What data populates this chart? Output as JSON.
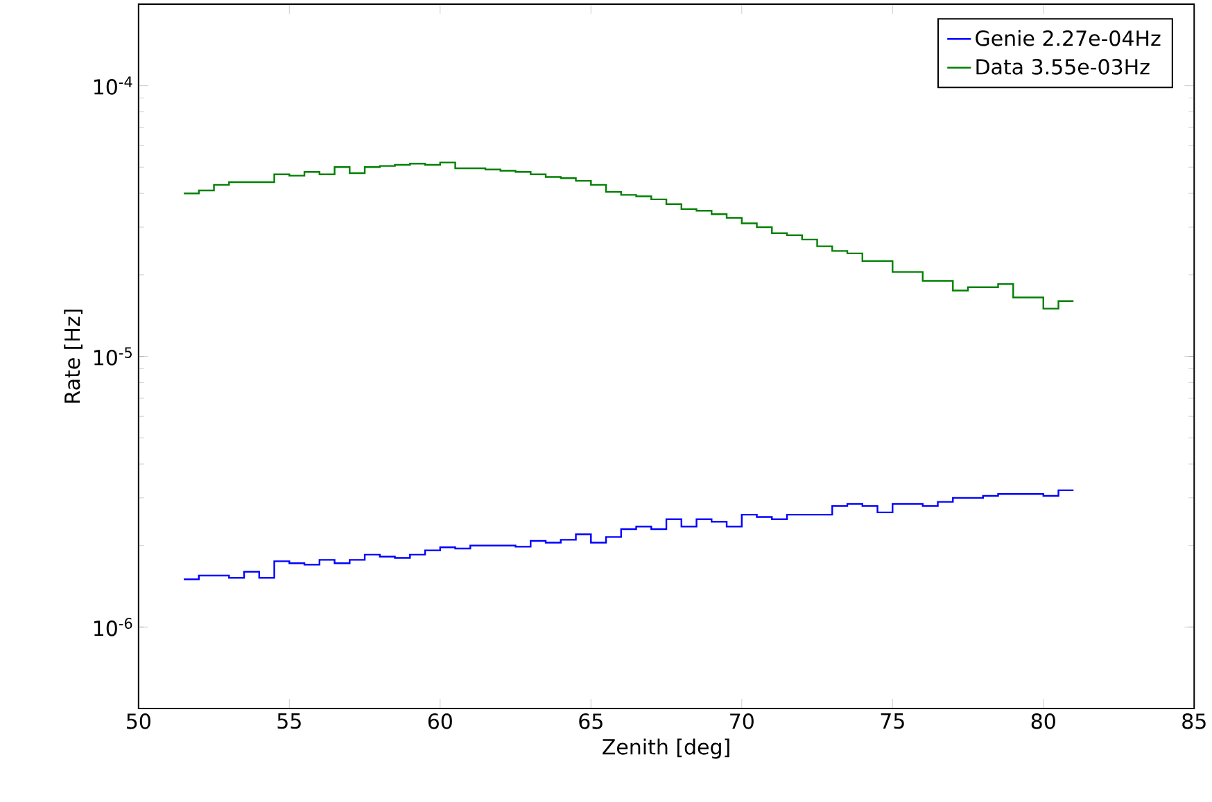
{
  "chart_data": {
    "type": "histogram",
    "xlabel": "Zenith [deg]",
    "ylabel": "Rate [Hz]",
    "log": "y",
    "legend": "top right",
    "xlim": [
      50,
      85
    ],
    "xticks": [
      50,
      55,
      60,
      65,
      70,
      75,
      80,
      85
    ],
    "ylim": [
      5e-07,
      0.0002
    ],
    "yticks": [
      {
        "value": 1e-06,
        "label": "10$^{-6}$"
      },
      {
        "value": 1e-05,
        "label": "10$^{-5}$"
      },
      {
        "value": 0.0001,
        "label": "10$^{-4}$"
      }
    ],
    "bins": [
      51.5,
      52.0,
      52.5,
      53.0,
      53.5,
      54.0,
      54.5,
      55.0,
      55.5,
      56.0,
      56.5,
      57.0,
      57.5,
      58.0,
      58.5,
      59.0,
      59.5,
      60.0,
      60.5,
      61.0,
      61.5,
      62.0,
      62.5,
      63.0,
      63.5,
      64.0,
      64.5,
      65.0,
      65.5,
      66.0,
      66.5,
      67.0,
      67.5,
      68.0,
      68.5,
      69.0,
      69.5,
      70.0,
      70.5,
      71.0,
      71.5,
      72.0,
      72.5,
      73.0,
      73.5,
      74.0,
      74.5,
      75.0,
      75.5,
      76.0,
      76.5,
      77.0,
      77.5,
      78.0,
      78.5,
      79.0,
      79.5,
      80.0,
      80.5,
      81.0
    ],
    "series": [
      {
        "name": "Genie 2.27e-04Hz",
        "color": "#0000ff",
        "values": [
          1.5e-06,
          1.55e-06,
          1.55e-06,
          1.52e-06,
          1.6e-06,
          1.52e-06,
          1.75e-06,
          1.72e-06,
          1.7e-06,
          1.77e-06,
          1.72e-06,
          1.77e-06,
          1.85e-06,
          1.82e-06,
          1.8e-06,
          1.85e-06,
          1.92e-06,
          1.97e-06,
          1.95e-06,
          2e-06,
          2e-06,
          2e-06,
          1.98e-06,
          2.08e-06,
          2.05e-06,
          2.1e-06,
          2.2e-06,
          2.05e-06,
          2.15e-06,
          2.3e-06,
          2.35e-06,
          2.3e-06,
          2.5e-06,
          2.35e-06,
          2.5e-06,
          2.45e-06,
          2.35e-06,
          2.6e-06,
          2.55e-06,
          2.5e-06,
          2.6e-06,
          2.6e-06,
          2.6e-06,
          2.8e-06,
          2.85e-06,
          2.8e-06,
          2.65e-06,
          2.85e-06,
          2.85e-06,
          2.8e-06,
          2.9e-06,
          3e-06,
          3e-06,
          3.05e-06,
          3.1e-06,
          3.1e-06,
          3.1e-06,
          3.05e-06,
          3.2e-06
        ]
      },
      {
        "name": "Data 3.55e-03Hz",
        "color": "#008000",
        "values": [
          4e-05,
          4.1e-05,
          4.3e-05,
          4.4e-05,
          4.4e-05,
          4.4e-05,
          4.7e-05,
          4.65e-05,
          4.8e-05,
          4.7e-05,
          5e-05,
          4.75e-05,
          5e-05,
          5.05e-05,
          5.1e-05,
          5.15e-05,
          5.1e-05,
          5.2e-05,
          4.95e-05,
          4.95e-05,
          4.9e-05,
          4.85e-05,
          4.8e-05,
          4.7e-05,
          4.6e-05,
          4.55e-05,
          4.45e-05,
          4.3e-05,
          4.05e-05,
          3.95e-05,
          3.9e-05,
          3.8e-05,
          3.65e-05,
          3.5e-05,
          3.45e-05,
          3.35e-05,
          3.25e-05,
          3.1e-05,
          3e-05,
          2.85e-05,
          2.8e-05,
          2.7e-05,
          2.55e-05,
          2.45e-05,
          2.4e-05,
          2.25e-05,
          2.25e-05,
          2.05e-05,
          2.05e-05,
          1.9e-05,
          1.9e-05,
          1.75e-05,
          1.8e-05,
          1.8e-05,
          1.85e-05,
          1.65e-05,
          1.65e-05,
          1.5e-05,
          1.6e-05
        ]
      }
    ]
  }
}
